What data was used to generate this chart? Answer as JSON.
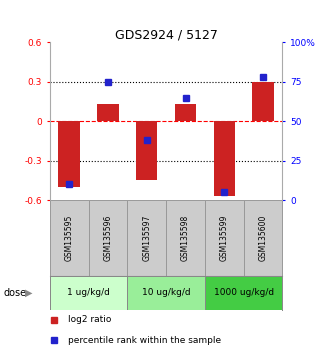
{
  "title": "GDS2924 / 5127",
  "samples": [
    "GSM135595",
    "GSM135596",
    "GSM135597",
    "GSM135598",
    "GSM135599",
    "GSM135600"
  ],
  "log2_ratio": [
    -0.5,
    0.13,
    -0.45,
    0.13,
    -0.57,
    0.3
  ],
  "percentile_rank": [
    10,
    75,
    38,
    65,
    5,
    78
  ],
  "ylim_left": [
    -0.6,
    0.6
  ],
  "ylim_right": [
    0,
    100
  ],
  "yticks_left": [
    -0.6,
    -0.3,
    0.0,
    0.3,
    0.6
  ],
  "ytick_labels_left": [
    "-0.6",
    "-0.3",
    "0",
    "0.3",
    "0.6"
  ],
  "yticks_right": [
    0,
    25,
    50,
    75,
    100
  ],
  "ytick_labels_right": [
    "0",
    "25",
    "50",
    "75",
    "100%"
  ],
  "hlines_dotted": [
    -0.3,
    0.3
  ],
  "bar_color": "#cc2222",
  "dot_color": "#2222cc",
  "dose_groups": [
    {
      "label": "1 ug/kg/d",
      "start": 0,
      "end": 2,
      "color": "#ccffcc"
    },
    {
      "label": "10 ug/kg/d",
      "start": 2,
      "end": 4,
      "color": "#99ee99"
    },
    {
      "label": "1000 ug/kg/d",
      "start": 4,
      "end": 6,
      "color": "#44cc44"
    }
  ],
  "dose_label": "dose",
  "legend_bar_label": "log2 ratio",
  "legend_dot_label": "percentile rank within the sample",
  "bar_width": 0.55,
  "sample_box_color": "#cccccc",
  "sample_box_edge": "#999999"
}
